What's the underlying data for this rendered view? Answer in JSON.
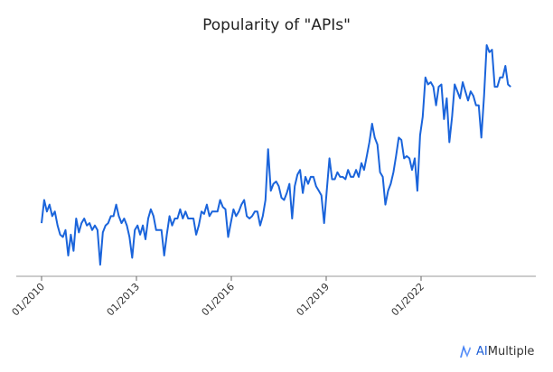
{
  "chart_data": {
    "type": "line",
    "title": "Popularity of \"APIs\"",
    "xlabel": "",
    "ylabel": "",
    "start": "2010-01",
    "frequency": "monthly",
    "ylim": [
      0,
      100
    ],
    "grid": false,
    "x_tick_labels": [
      "01/2010",
      "01/2013",
      "01/2016",
      "01/2019",
      "01/2022"
    ],
    "line_color": "#1a64db",
    "values": [
      23,
      33,
      28,
      31,
      26,
      28,
      22,
      18,
      17,
      20,
      9,
      18,
      11,
      25,
      19,
      23,
      25,
      22,
      23,
      20,
      22,
      20,
      5,
      19,
      22,
      23,
      26,
      26,
      31,
      26,
      23,
      25,
      22,
      17,
      8,
      20,
      22,
      18,
      22,
      16,
      25,
      29,
      26,
      20,
      20,
      20,
      9,
      18,
      26,
      22,
      25,
      25,
      29,
      25,
      28,
      25,
      25,
      25,
      18,
      22,
      28,
      27,
      31,
      26,
      28,
      28,
      28,
      33,
      30,
      29,
      17,
      23,
      29,
      26,
      28,
      31,
      33,
      26,
      25,
      26,
      28,
      28,
      22,
      26,
      33,
      55,
      37,
      40,
      41,
      39,
      34,
      33,
      36,
      40,
      25,
      39,
      44,
      46,
      36,
      43,
      40,
      43,
      43,
      39,
      37,
      35,
      23,
      37,
      51,
      42,
      42,
      45,
      43,
      43,
      42,
      46,
      43,
      43,
      46,
      43,
      49,
      46,
      52,
      58,
      66,
      60,
      57,
      45,
      43,
      31,
      37,
      40,
      45,
      52,
      60,
      59,
      51,
      52,
      51,
      46,
      51,
      37,
      61,
      69,
      86,
      83,
      84,
      82,
      74,
      82,
      83,
      68,
      77,
      58,
      69,
      83,
      80,
      77,
      84,
      80,
      76,
      80,
      78,
      74,
      74,
      60,
      78,
      100,
      97,
      98,
      82,
      82,
      86,
      86,
      91,
      83,
      82
    ]
  },
  "logo": {
    "text_accent": "AI",
    "text_rest": "Multiple",
    "accent_color": "#1f5fd6"
  }
}
